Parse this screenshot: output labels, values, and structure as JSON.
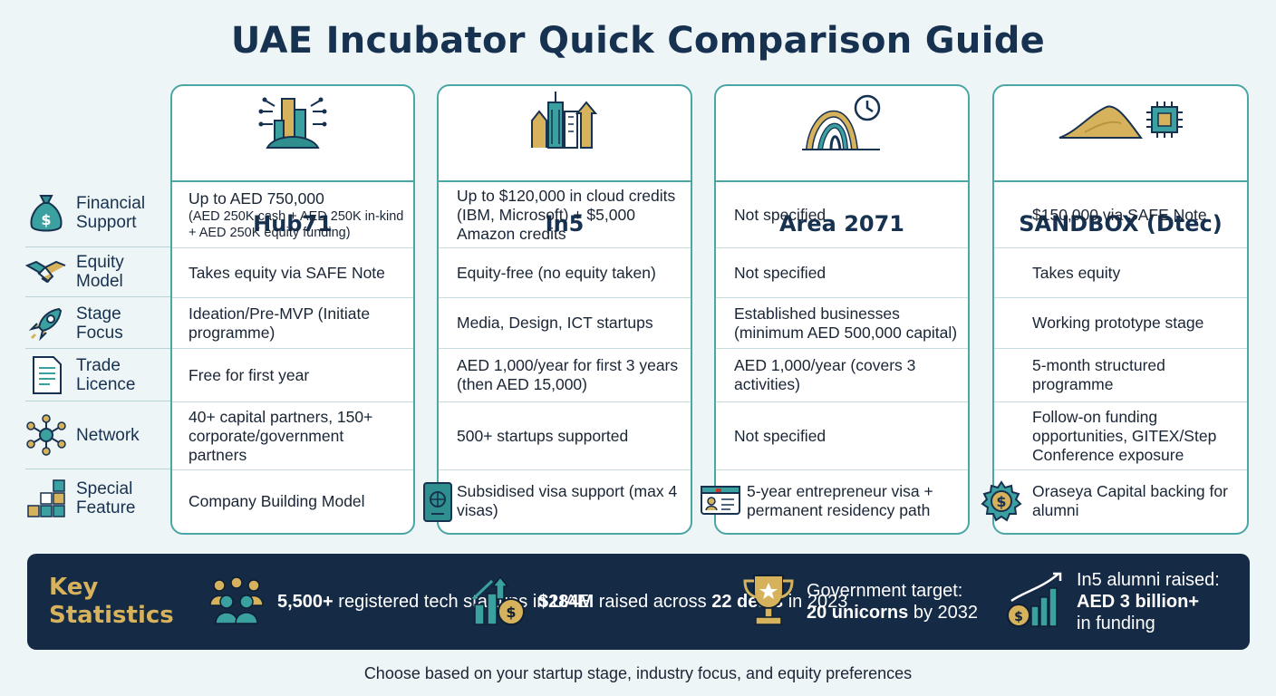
{
  "title": "UAE Incubator Quick Comparison Guide",
  "row_labels": [
    {
      "l1": "Financial",
      "l2": "Support",
      "icon": "money-bag-icon"
    },
    {
      "l1": "Equity",
      "l2": "Model",
      "icon": "handshake-icon"
    },
    {
      "l1": "Stage",
      "l2": "Focus",
      "icon": "rocket-icon"
    },
    {
      "l1": "Trade",
      "l2": "Licence",
      "icon": "document-icon"
    },
    {
      "l1": "Network",
      "l2": "",
      "icon": "network-icon"
    },
    {
      "l1": "Special",
      "l2": "Feature",
      "icon": "blocks-icon"
    }
  ],
  "incubators": {
    "hub71": {
      "name": "Hub71",
      "financial_main": "Up to AED 750,000",
      "financial_detail": "(AED 250K cash + AED 250K in-kind + AED 250K equity funding)",
      "equity": "Takes equity via SAFE Note",
      "stage": "Ideation/Pre-MVP (Initiate programme)",
      "licence": "Free for first year",
      "network": "40+ capital partners, 150+ corporate/government partners",
      "special": "Company Building Model"
    },
    "in5": {
      "name": "In5",
      "financial": "Up to $120,000 in cloud credits (IBM, Microsoft) + $5,000 Amazon credits",
      "equity": "Equity-free (no equity taken)",
      "stage": "Media, Design, ICT startups",
      "licence": "AED 1,000/year for first 3 years (then AED 15,000)",
      "network": "500+ startups supported",
      "special": "Subsidised visa support (max 4 visas)"
    },
    "area2071": {
      "name": "Area 2071",
      "financial": "Not specified",
      "equity": "Not specified",
      "stage": "Established businesses (minimum AED 500,000 capital)",
      "licence": "AED 1,000/year (covers 3 activities)",
      "network": "Not specified",
      "special": "5-year entrepreneur visa + permanent residency path"
    },
    "sandbox": {
      "name": "SANDBOX (Dtec)",
      "financial": "$150,000 via SAFE Note",
      "equity": "Takes equity",
      "stage": "Working prototype stage",
      "licence": "5-month structured programme",
      "network": "Follow-on funding opportunities, GITEX/Step Conference exposure",
      "special": "Oraseya Capital backing for alumni"
    }
  },
  "key_statistics": {
    "label_line1": "Key",
    "label_line2": "Statistics",
    "items": [
      {
        "bold": "5,500+",
        "rest": " registered tech startups in UAE"
      },
      {
        "bold1": "$284M",
        "mid": " raised across ",
        "bold2": "22 deals",
        "rest": " in 2023"
      },
      {
        "pre": "Government target: ",
        "bold": "20 unicorns",
        "rest": " by 2032"
      },
      {
        "pre": "In5 alumni raised: ",
        "bold": "AED 3 billion+",
        "rest": " in funding"
      }
    ]
  },
  "footer": "Choose based on your startup stage, industry focus, and equity preferences",
  "colors": {
    "navy": "#173150",
    "teal": "#4ba6a6",
    "gold": "#d6b25c",
    "stats_bg": "#142a45"
  }
}
